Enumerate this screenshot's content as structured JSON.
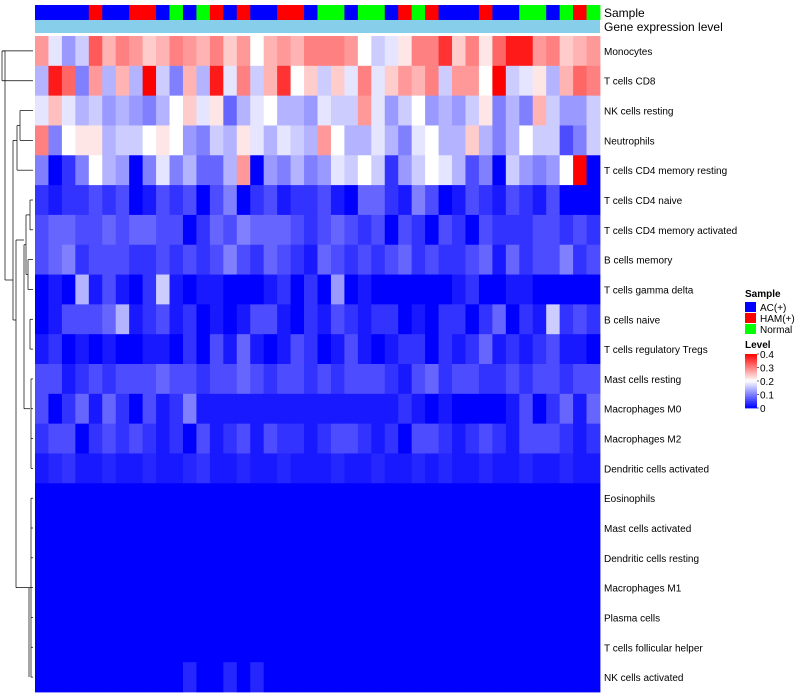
{
  "chart_data": {
    "type": "heatmap",
    "title": "",
    "annotation_tracks": [
      "Sample",
      "Gene expression level"
    ],
    "legend_placement": "right",
    "sample_legend": {
      "title": "Sample",
      "entries": [
        {
          "label": "AC(+)",
          "color": "#0000ff"
        },
        {
          "label": "HAM(+)",
          "color": "#ff0000"
        },
        {
          "label": "Normal",
          "color": "#00ff00"
        }
      ]
    },
    "level_legend": {
      "title": "Level",
      "ticks": [
        0,
        0.1,
        0.2,
        0.3,
        0.4
      ],
      "tick_labels": [
        "0",
        "0.1",
        "0.2",
        "0.3",
        "0.4"
      ],
      "range": [
        0,
        0.4
      ],
      "colors": {
        "low": "#0000ff",
        "mid": "#ffffff",
        "high": "#ff0000"
      }
    },
    "sample_groups": [
      "AC",
      "AC",
      "AC",
      "AC",
      "HAM",
      "AC",
      "AC",
      "HAM",
      "HAM",
      "AC",
      "Normal",
      "AC",
      "Normal",
      "HAM",
      "AC",
      "HAM",
      "AC",
      "AC",
      "HAM",
      "HAM",
      "AC",
      "Normal",
      "Normal",
      "AC",
      "Normal",
      "Normal",
      "AC",
      "HAM",
      "Normal",
      "HAM",
      "AC",
      "AC",
      "AC",
      "HAM",
      "AC",
      "AC",
      "Normal",
      "Normal",
      "AC",
      "Normal",
      "HAM",
      "Normal"
    ],
    "expression_level_track_color": "#87ceeb",
    "rows": [
      "Monocytes",
      "T cells CD8",
      "NK cells resting",
      "Neutrophils",
      "T cells CD4 memory resting",
      "T cells CD4 naive",
      "T cells CD4 memory activated",
      "B cells memory",
      "T cells gamma delta",
      "B cells naive",
      "T cells regulatory  Tregs",
      "Mast cells resting",
      "Macrophages M0",
      "Macrophages M2",
      "Dendritic cells activated",
      "Eosinophils",
      "Mast cells activated",
      "Dendritic cells resting",
      "Macrophages M1",
      "Plasma cells",
      "T cells follicular helper",
      "NK cells activated"
    ],
    "values": [
      [
        0.28,
        0.18,
        0.12,
        0.16,
        0.33,
        0.26,
        0.3,
        0.28,
        0.24,
        0.26,
        0.3,
        0.28,
        0.26,
        0.3,
        0.24,
        0.28,
        0.2,
        0.26,
        0.28,
        0.26,
        0.3,
        0.3,
        0.3,
        0.28,
        0.2,
        0.16,
        0.18,
        0.22,
        0.3,
        0.3,
        0.36,
        0.24,
        0.3,
        0.22,
        0.32,
        0.38,
        0.38,
        0.28,
        0.3,
        0.24,
        0.26,
        0.28
      ],
      [
        0.14,
        0.38,
        0.32,
        0.1,
        0.28,
        0.14,
        0.26,
        0.14,
        0.4,
        0.16,
        0.1,
        0.26,
        0.14,
        0.38,
        0.18,
        0.3,
        0.16,
        0.26,
        0.36,
        0.2,
        0.24,
        0.16,
        0.24,
        0.18,
        0.3,
        0.18,
        0.24,
        0.28,
        0.26,
        0.3,
        0.16,
        0.28,
        0.28,
        0.2,
        0.4,
        0.16,
        0.18,
        0.22,
        0.14,
        0.26,
        0.32,
        0.3
      ],
      [
        0.18,
        0.25,
        0.18,
        0.14,
        0.16,
        0.12,
        0.14,
        0.12,
        0.1,
        0.14,
        0.2,
        0.24,
        0.18,
        0.22,
        0.08,
        0.14,
        0.18,
        0.2,
        0.14,
        0.14,
        0.12,
        0.18,
        0.16,
        0.16,
        0.28,
        0.18,
        0.12,
        0.16,
        0.2,
        0.12,
        0.14,
        0.12,
        0.16,
        0.22,
        0.1,
        0.14,
        0.1,
        0.26,
        0.16,
        0.12,
        0.12,
        0.16
      ],
      [
        0.3,
        0.1,
        0.2,
        0.22,
        0.22,
        0.14,
        0.16,
        0.16,
        0.2,
        0.22,
        0.2,
        0.12,
        0.1,
        0.16,
        0.14,
        0.22,
        0.18,
        0.14,
        0.18,
        0.16,
        0.14,
        0.28,
        0.2,
        0.14,
        0.14,
        0.18,
        0.14,
        0.1,
        0.18,
        0.2,
        0.14,
        0.14,
        0.24,
        0.14,
        0.1,
        0.14,
        0.2,
        0.16,
        0.16,
        0.06,
        0.1,
        0.16
      ],
      [
        0.1,
        0.0,
        0.04,
        0.1,
        0.2,
        0.14,
        0.12,
        0.0,
        0.1,
        0.18,
        0.1,
        0.14,
        0.08,
        0.08,
        0.14,
        0.28,
        0.0,
        0.12,
        0.1,
        0.14,
        0.1,
        0.12,
        0.18,
        0.16,
        0.2,
        0.16,
        0.04,
        0.12,
        0.16,
        0.2,
        0.18,
        0.14,
        0.06,
        0.1,
        0.0,
        0.16,
        0.12,
        0.1,
        0.12,
        0.2,
        0.4,
        0.0
      ],
      [
        0.04,
        0.02,
        0.04,
        0.04,
        0.06,
        0.04,
        0.06,
        0.0,
        0.02,
        0.06,
        0.04,
        0.06,
        0.0,
        0.06,
        0.1,
        0.0,
        0.04,
        0.06,
        0.02,
        0.04,
        0.04,
        0.06,
        0.02,
        0.0,
        0.08,
        0.08,
        0.04,
        0.02,
        0.1,
        0.06,
        0.0,
        0.02,
        0.06,
        0.04,
        0.02,
        0.06,
        0.04,
        0.02,
        0.06,
        0.0,
        0.0,
        0.0
      ],
      [
        0.06,
        0.08,
        0.08,
        0.06,
        0.06,
        0.08,
        0.06,
        0.08,
        0.08,
        0.06,
        0.06,
        0.0,
        0.04,
        0.08,
        0.06,
        0.1,
        0.08,
        0.08,
        0.08,
        0.06,
        0.04,
        0.06,
        0.08,
        0.06,
        0.04,
        0.06,
        0.0,
        0.06,
        0.04,
        0.0,
        0.06,
        0.04,
        0.0,
        0.06,
        0.04,
        0.04,
        0.04,
        0.06,
        0.06,
        0.04,
        0.06,
        0.04
      ],
      [
        0.06,
        0.08,
        0.1,
        0.04,
        0.06,
        0.06,
        0.06,
        0.04,
        0.04,
        0.06,
        0.04,
        0.06,
        0.04,
        0.06,
        0.1,
        0.06,
        0.04,
        0.08,
        0.06,
        0.04,
        0.02,
        0.08,
        0.06,
        0.04,
        0.06,
        0.04,
        0.06,
        0.08,
        0.04,
        0.06,
        0.04,
        0.04,
        0.06,
        0.08,
        0.02,
        0.08,
        0.04,
        0.06,
        0.06,
        0.1,
        0.04,
        0.06
      ],
      [
        0.0,
        0.02,
        0.0,
        0.14,
        0.02,
        0.06,
        0.02,
        0.0,
        0.04,
        0.16,
        0.02,
        0.0,
        0.02,
        0.02,
        0.0,
        0.0,
        0.0,
        0.02,
        0.04,
        0.0,
        0.04,
        0.0,
        0.12,
        0.0,
        0.02,
        0.0,
        0.0,
        0.0,
        0.0,
        0.0,
        0.0,
        0.02,
        0.04,
        0.0,
        0.0,
        0.02,
        0.02,
        0.0,
        0.0,
        0.0,
        0.0,
        0.0
      ],
      [
        0.0,
        0.02,
        0.06,
        0.06,
        0.06,
        0.08,
        0.14,
        0.02,
        0.04,
        0.06,
        0.02,
        0.04,
        0.0,
        0.02,
        0.0,
        0.02,
        0.06,
        0.06,
        0.02,
        0.0,
        0.04,
        0.02,
        0.06,
        0.04,
        0.02,
        0.04,
        0.04,
        0.0,
        0.02,
        0.0,
        0.04,
        0.04,
        0.0,
        0.04,
        0.08,
        0.0,
        0.04,
        0.02,
        0.16,
        0.04,
        0.06,
        0.04
      ],
      [
        0.02,
        0.04,
        0.0,
        0.02,
        0.0,
        0.02,
        0.0,
        0.0,
        0.02,
        0.02,
        0.0,
        0.04,
        0.0,
        0.06,
        0.02,
        0.08,
        0.02,
        0.0,
        0.02,
        0.06,
        0.04,
        0.0,
        0.02,
        0.06,
        0.02,
        0.0,
        0.02,
        0.04,
        0.04,
        0.0,
        0.04,
        0.02,
        0.04,
        0.08,
        0.02,
        0.04,
        0.02,
        0.04,
        0.06,
        0.02,
        0.02,
        0.0
      ],
      [
        0.06,
        0.06,
        0.02,
        0.04,
        0.06,
        0.04,
        0.06,
        0.06,
        0.06,
        0.08,
        0.06,
        0.06,
        0.04,
        0.06,
        0.06,
        0.08,
        0.06,
        0.04,
        0.06,
        0.06,
        0.04,
        0.06,
        0.04,
        0.06,
        0.06,
        0.06,
        0.04,
        0.02,
        0.06,
        0.08,
        0.04,
        0.06,
        0.06,
        0.04,
        0.04,
        0.06,
        0.04,
        0.06,
        0.06,
        0.04,
        0.06,
        0.06
      ],
      [
        0.06,
        0.0,
        0.04,
        0.08,
        0.02,
        0.08,
        0.04,
        0.0,
        0.06,
        0.02,
        0.04,
        0.1,
        0.02,
        0.02,
        0.02,
        0.02,
        0.02,
        0.02,
        0.02,
        0.02,
        0.02,
        0.02,
        0.02,
        0.02,
        0.02,
        0.02,
        0.02,
        0.04,
        0.02,
        0.0,
        0.02,
        0.0,
        0.0,
        0.0,
        0.0,
        0.02,
        0.06,
        0.0,
        0.04,
        0.08,
        0.02,
        0.08
      ],
      [
        0.04,
        0.06,
        0.06,
        0.0,
        0.04,
        0.06,
        0.04,
        0.06,
        0.04,
        0.02,
        0.04,
        0.0,
        0.06,
        0.02,
        0.04,
        0.06,
        0.02,
        0.06,
        0.04,
        0.04,
        0.02,
        0.04,
        0.06,
        0.06,
        0.04,
        0.02,
        0.04,
        0.0,
        0.06,
        0.06,
        0.04,
        0.02,
        0.04,
        0.06,
        0.04,
        0.02,
        0.06,
        0.06,
        0.06,
        0.04,
        0.02,
        0.04
      ],
      [
        0.02,
        0.03,
        0.04,
        0.02,
        0.02,
        0.03,
        0.02,
        0.02,
        0.03,
        0.02,
        0.02,
        0.03,
        0.04,
        0.02,
        0.02,
        0.03,
        0.02,
        0.02,
        0.03,
        0.02,
        0.02,
        0.02,
        0.03,
        0.02,
        0.02,
        0.03,
        0.02,
        0.02,
        0.03,
        0.02,
        0.03,
        0.02,
        0.02,
        0.03,
        0.02,
        0.02,
        0.03,
        0.02,
        0.02,
        0.03,
        0.02,
        0.02
      ],
      [
        0.0,
        0.0,
        0.0,
        0.0,
        0.0,
        0.0,
        0.0,
        0.0,
        0.0,
        0.0,
        0.0,
        0.0,
        0.0,
        0.0,
        0.0,
        0.0,
        0.0,
        0.0,
        0.0,
        0.0,
        0.0,
        0.0,
        0.0,
        0.0,
        0.0,
        0.0,
        0.0,
        0.0,
        0.0,
        0.0,
        0.0,
        0.0,
        0.0,
        0.0,
        0.0,
        0.0,
        0.0,
        0.0,
        0.0,
        0.0,
        0.0,
        0.0
      ],
      [
        0.0,
        0.0,
        0.0,
        0.0,
        0.0,
        0.0,
        0.0,
        0.0,
        0.0,
        0.0,
        0.0,
        0.0,
        0.0,
        0.0,
        0.0,
        0.0,
        0.0,
        0.0,
        0.0,
        0.0,
        0.0,
        0.0,
        0.0,
        0.0,
        0.0,
        0.0,
        0.0,
        0.0,
        0.0,
        0.0,
        0.0,
        0.0,
        0.0,
        0.0,
        0.0,
        0.0,
        0.0,
        0.0,
        0.0,
        0.0,
        0.0,
        0.0
      ],
      [
        0.0,
        0.0,
        0.0,
        0.0,
        0.0,
        0.0,
        0.0,
        0.0,
        0.0,
        0.0,
        0.0,
        0.0,
        0.0,
        0.0,
        0.0,
        0.0,
        0.0,
        0.0,
        0.0,
        0.0,
        0.0,
        0.0,
        0.0,
        0.0,
        0.0,
        0.0,
        0.0,
        0.0,
        0.0,
        0.0,
        0.0,
        0.0,
        0.0,
        0.0,
        0.0,
        0.0,
        0.0,
        0.0,
        0.0,
        0.0,
        0.0,
        0.0
      ],
      [
        0.0,
        0.0,
        0.0,
        0.0,
        0.0,
        0.0,
        0.0,
        0.0,
        0.0,
        0.0,
        0.0,
        0.0,
        0.0,
        0.0,
        0.0,
        0.0,
        0.0,
        0.0,
        0.0,
        0.0,
        0.0,
        0.0,
        0.0,
        0.0,
        0.0,
        0.0,
        0.0,
        0.0,
        0.0,
        0.0,
        0.0,
        0.0,
        0.0,
        0.0,
        0.0,
        0.0,
        0.0,
        0.0,
        0.0,
        0.0,
        0.0,
        0.0
      ],
      [
        0.0,
        0.0,
        0.0,
        0.0,
        0.0,
        0.0,
        0.0,
        0.0,
        0.0,
        0.0,
        0.0,
        0.0,
        0.0,
        0.0,
        0.0,
        0.0,
        0.0,
        0.0,
        0.0,
        0.0,
        0.0,
        0.0,
        0.0,
        0.0,
        0.0,
        0.0,
        0.0,
        0.0,
        0.0,
        0.0,
        0.0,
        0.0,
        0.0,
        0.0,
        0.0,
        0.0,
        0.0,
        0.0,
        0.0,
        0.0,
        0.0,
        0.0
      ],
      [
        0.0,
        0.0,
        0.0,
        0.0,
        0.0,
        0.0,
        0.0,
        0.0,
        0.0,
        0.0,
        0.0,
        0.0,
        0.0,
        0.0,
        0.0,
        0.0,
        0.0,
        0.0,
        0.0,
        0.0,
        0.0,
        0.0,
        0.0,
        0.0,
        0.0,
        0.0,
        0.0,
        0.0,
        0.0,
        0.0,
        0.0,
        0.0,
        0.0,
        0.0,
        0.0,
        0.0,
        0.0,
        0.0,
        0.0,
        0.0,
        0.0,
        0.0
      ],
      [
        0.0,
        0.0,
        0.0,
        0.0,
        0.0,
        0.0,
        0.0,
        0.0,
        0.0,
        0.0,
        0.0,
        0.03,
        0.0,
        0.0,
        0.03,
        0.0,
        0.03,
        0.0,
        0.0,
        0.0,
        0.0,
        0.0,
        0.0,
        0.0,
        0.0,
        0.0,
        0.0,
        0.0,
        0.0,
        0.0,
        0.0,
        0.0,
        0.0,
        0.0,
        0.0,
        0.0,
        0.0,
        0.0,
        0.0,
        0.0,
        0.0,
        0.0
      ]
    ]
  }
}
